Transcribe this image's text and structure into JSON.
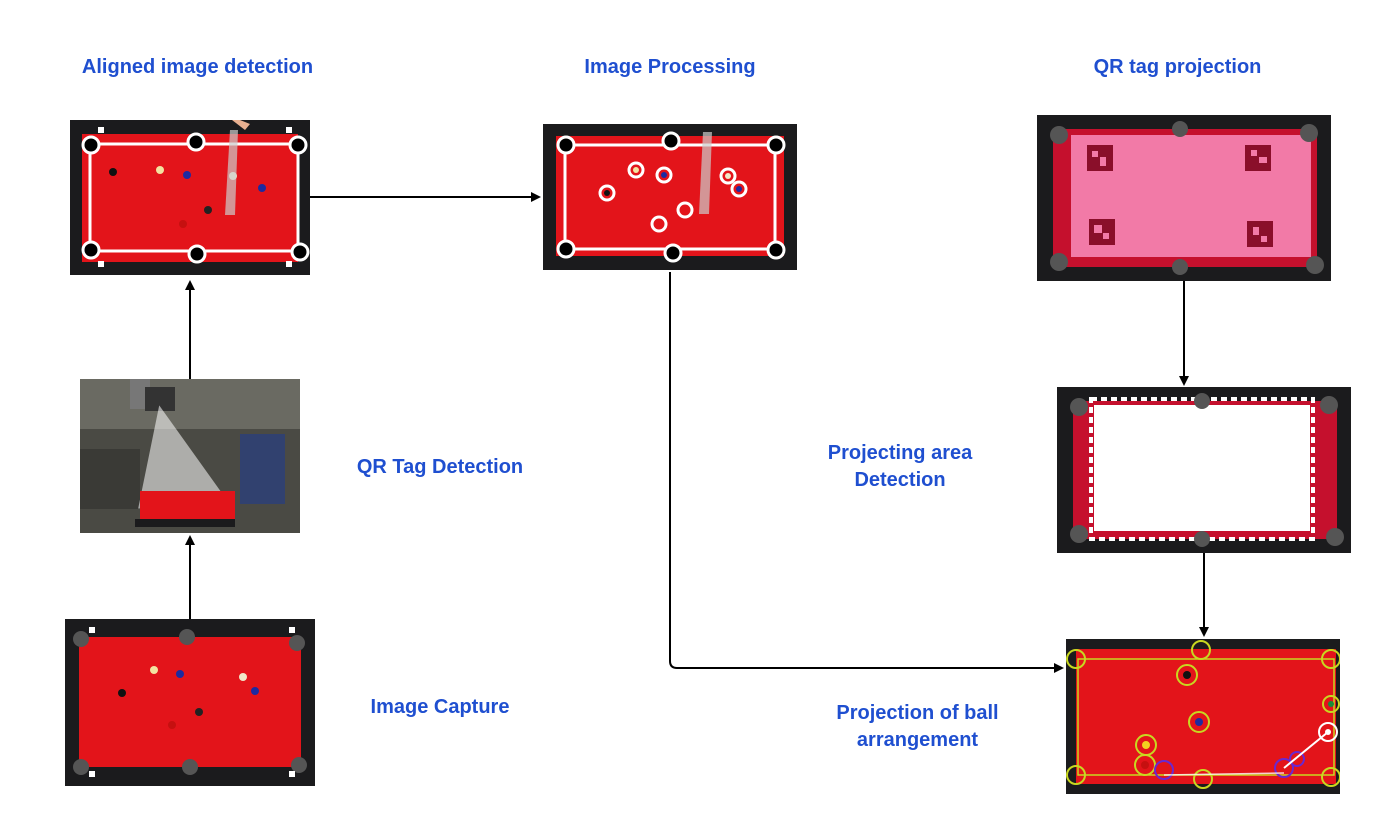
{
  "labels": {
    "aligned": "Aligned image detection",
    "processing": "Image Processing",
    "qr_projection": "QR tag projection",
    "qr_detection": "QR Tag Detection",
    "area_line1": "Projecting area",
    "area_line2": "Detection",
    "capture": "Image Capture",
    "ball_line1": "Projection of ball",
    "ball_line2": "arrangement"
  },
  "colors": {
    "label": "#1f4fd0",
    "felt": "#e3141a",
    "rail": "#1b1b1d",
    "projection_pink": "#f27aa7",
    "arrow": "#000000"
  },
  "icons": [
    "pool-table-photo",
    "camera-rig-photo",
    "qr-marker"
  ]
}
